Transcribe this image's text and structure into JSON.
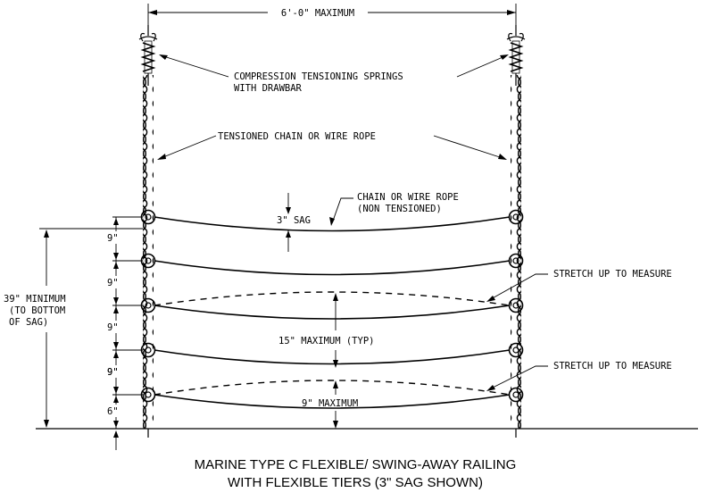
{
  "dimensions": {
    "post_spacing": "6'-0\" MAXIMUM",
    "sag": "3\" SAG",
    "tier_spacing": [
      "9\"",
      "9\"",
      "9\"",
      "9\"",
      "9\""
    ],
    "bottom_clearance": "6\"",
    "overall_height": [
      "39\" MINIMUM",
      "(TO BOTTOM",
      "OF SAG)"
    ],
    "max_tier_gap": "15\" MAXIMUM (TYP)",
    "bottom_gap": "9\" MAXIMUM"
  },
  "callouts": {
    "springs": [
      "COMPRESSION TENSIONING SPRINGS",
      "WITH DRAWBAR"
    ],
    "tensioned": "TENSIONED CHAIN OR WIRE ROPE",
    "non_tensioned": [
      "CHAIN OR WIRE ROPE",
      "(NON TENSIONED)"
    ],
    "stretch_upper": "STRETCH UP TO MEASURE",
    "stretch_lower": "STRETCH UP TO MEASURE"
  },
  "caption": {
    "line1": "MARINE TYPE C FLEXIBLE/ SWING-AWAY RAILING",
    "line2": "WITH FLEXIBLE TIERS (3\" SAG SHOWN)"
  }
}
